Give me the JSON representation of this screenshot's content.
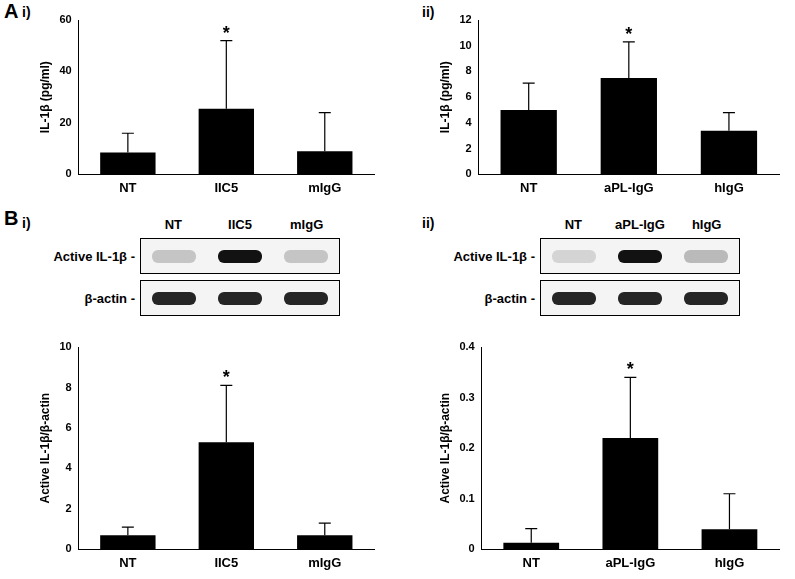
{
  "chart_data": [
    {
      "type": "bar",
      "panel": "A",
      "part": "i)",
      "ylabel": "IL-1β (pg/ml)",
      "categories": [
        "NT",
        "IIC5",
        "mIgG"
      ],
      "values": [
        8.5,
        25.5,
        9
      ],
      "errors": [
        7.5,
        26.5,
        15
      ],
      "color": "#000000",
      "ylim": [
        0,
        60
      ],
      "yticks": [
        0,
        20,
        40,
        60
      ],
      "grid": false,
      "annotations": [
        {
          "category": "IIC5",
          "text": "*"
        }
      ]
    },
    {
      "type": "bar",
      "panel": "A",
      "part": "ii)",
      "ylabel": "IL-1β (pg/ml)",
      "categories": [
        "NT",
        "aPL-IgG",
        "hIgG"
      ],
      "values": [
        5.0,
        7.5,
        3.4
      ],
      "errors": [
        2.1,
        2.8,
        1.4
      ],
      "color": "#000000",
      "ylim": [
        0,
        12
      ],
      "yticks": [
        0,
        2,
        4,
        6,
        8,
        10,
        12
      ],
      "grid": false,
      "annotations": [
        {
          "category": "aPL-IgG",
          "text": "*"
        }
      ]
    },
    {
      "type": "bar",
      "panel": "B",
      "part": "i)",
      "ylabel": "Active IL-1β/β-actin",
      "categories": [
        "NT",
        "IIC5",
        "mIgG"
      ],
      "values": [
        0.7,
        5.3,
        0.7
      ],
      "errors": [
        0.4,
        2.8,
        0.6
      ],
      "color": "#000000",
      "ylim": [
        0,
        10
      ],
      "yticks": [
        0,
        2,
        4,
        6,
        8,
        10
      ],
      "grid": false,
      "annotations": [
        {
          "category": "IIC5",
          "text": "*"
        }
      ]
    },
    {
      "type": "bar",
      "panel": "B",
      "part": "ii)",
      "ylabel": "Active IL-1β/β-actin",
      "categories": [
        "NT",
        "aPL-IgG",
        "hIgG"
      ],
      "values": [
        0.013,
        0.22,
        0.04
      ],
      "errors": [
        0.028,
        0.12,
        0.07
      ],
      "color": "#000000",
      "ylim": [
        0,
        0.4
      ],
      "yticks": [
        0,
        0.1,
        0.2,
        0.3,
        0.4
      ],
      "grid": false,
      "annotations": [
        {
          "category": "aPL-IgG",
          "text": "*"
        }
      ]
    }
  ],
  "blots": [
    {
      "panel": "B",
      "part": "i)",
      "lanes": [
        "NT",
        "IIC5",
        "mIgG"
      ],
      "rows": [
        "Active IL-1β -",
        "β-actin -"
      ]
    },
    {
      "panel": "B",
      "part": "ii)",
      "lanes": [
        "NT",
        "aPL-IgG",
        "hIgG"
      ],
      "rows": [
        "Active IL-1β -",
        "β-actin -"
      ]
    }
  ]
}
